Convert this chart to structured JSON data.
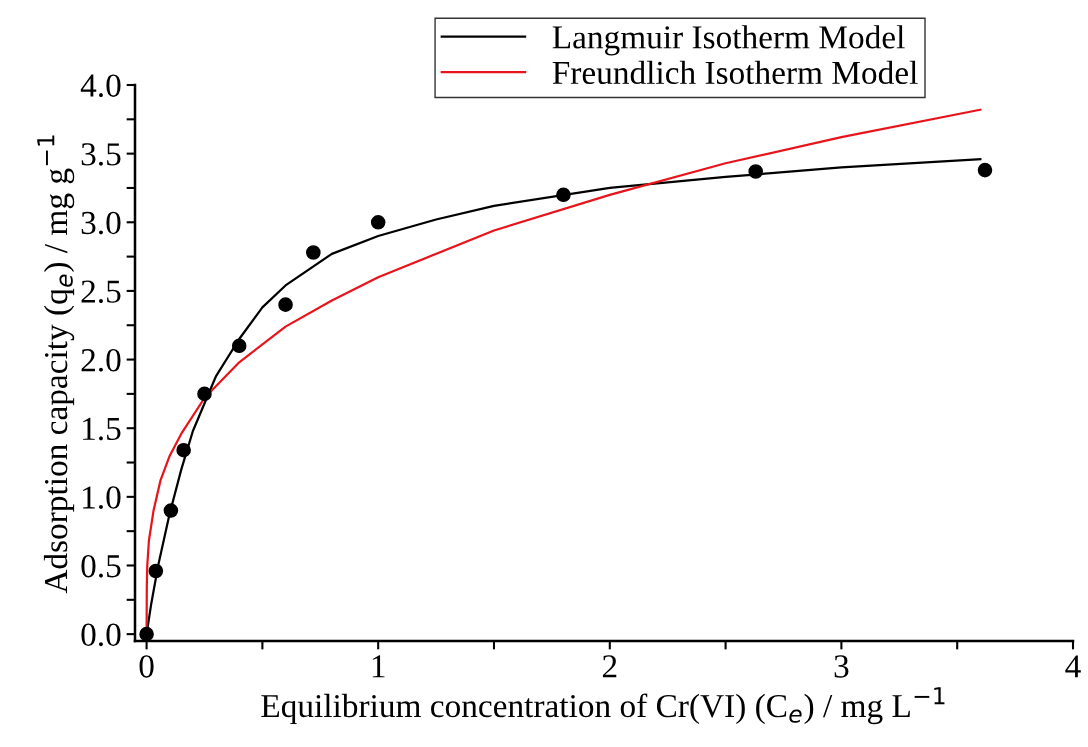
{
  "chart_data": {
    "type": "line",
    "xlabel": "Equilibrium concentration of Cr(VI) (C$_{e}$) / mg L$^{−1}$",
    "ylabel": "Adsorption capacity (q$_{e}$) / mg g$^{−1}$",
    "xlim": [
      -0.05,
      4
    ],
    "ylim": [
      -0.05,
      4
    ],
    "xticks": [
      0,
      {
        "value": 0.5,
        "label": null
      },
      1,
      {
        "value": 1.5,
        "label": null
      },
      2,
      {
        "value": 2.5,
        "label": null
      },
      3,
      {
        "value": 3.5,
        "label": null
      },
      4
    ],
    "yticks": [
      "0.0",
      {
        "value": 0.25,
        "label": null
      },
      {
        "value": 0.5,
        "label": "0.5"
      },
      {
        "value": 0.75,
        "label": null
      },
      {
        "value": 1.0,
        "label": "1.0"
      },
      {
        "value": 1.25,
        "label": null
      },
      {
        "value": 1.5,
        "label": "1.5"
      },
      {
        "value": 1.75,
        "label": null
      },
      {
        "value": 2.0,
        "label": "2.0"
      },
      {
        "value": 2.25,
        "label": null
      },
      {
        "value": 2.5,
        "label": "2.5"
      },
      {
        "value": 2.75,
        "label": null
      },
      {
        "value": 3.0,
        "label": "3.0"
      },
      {
        "value": 3.25,
        "label": null
      },
      {
        "value": 3.5,
        "label": "3.5"
      },
      {
        "value": 3.75,
        "label": null
      },
      {
        "value": 4.0,
        "label": "4.0"
      }
    ],
    "grid": false,
    "legend": "top right",
    "series": [
      {
        "type": "scatter",
        "marker": "circle",
        "color": "#000000",
        "x": [
          0,
          0.04,
          0.105,
          0.16,
          0.25,
          0.4,
          0.6,
          0.72,
          1.0,
          1.8,
          2.63,
          3.62
        ],
        "values": [
          0,
          0.46,
          0.9,
          1.34,
          1.75,
          2.1,
          2.4,
          2.78,
          3.0,
          3.2,
          3.37,
          3.38
        ]
      },
      {
        "name": "Langmuir Isotherm Model",
        "color": "#000000",
        "x": [
          0,
          0.02,
          0.05,
          0.1,
          0.15,
          0.2,
          0.3,
          0.4,
          0.5,
          0.6,
          0.8,
          1.0,
          1.25,
          1.5,
          2.0,
          2.5,
          3.0,
          3.6
        ],
        "values": [
          0,
          0.22,
          0.5,
          0.88,
          1.2,
          1.48,
          1.88,
          2.15,
          2.38,
          2.54,
          2.77,
          2.9,
          3.02,
          3.12,
          3.25,
          3.33,
          3.4,
          3.46
        ]
      },
      {
        "name": "Freundlich Isotherm Model",
        "color": "#e8141b",
        "x": [
          0,
          0.001,
          0.003,
          0.01,
          0.03,
          0.06,
          0.1,
          0.15,
          0.25,
          0.4,
          0.6,
          0.8,
          1.0,
          1.5,
          2.0,
          2.5,
          3.0,
          3.6
        ],
        "values": [
          0,
          0.35,
          0.5,
          0.68,
          0.9,
          1.12,
          1.3,
          1.46,
          1.72,
          1.98,
          2.24,
          2.43,
          2.6,
          2.94,
          3.2,
          3.43,
          3.62,
          3.82
        ]
      }
    ]
  }
}
